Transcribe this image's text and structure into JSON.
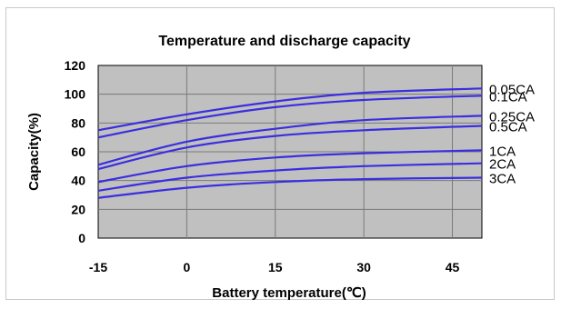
{
  "chart_data": {
    "type": "line",
    "title": "Temperature and discharge capacity",
    "xlabel": "Battery temperature(℃)",
    "ylabel": "Capacity(%)",
    "xlim": [
      -15,
      50
    ],
    "ylim": [
      0,
      120
    ],
    "xticks": [
      "-15",
      "0",
      "15",
      "30",
      "45"
    ],
    "yticks": [
      "0",
      "20",
      "40",
      "60",
      "80",
      "100",
      "120"
    ],
    "grid": true,
    "plot_background": "#c0c0c0",
    "line_color": "#3a2ee0",
    "series": [
      {
        "name": "0.05CA",
        "x": [
          -15,
          0,
          15,
          30,
          50
        ],
        "y": [
          75,
          86,
          95,
          101,
          104
        ]
      },
      {
        "name": "0.1CA",
        "x": [
          -15,
          0,
          15,
          30,
          50
        ],
        "y": [
          70,
          82,
          91,
          96,
          99
        ]
      },
      {
        "name": "0.25CA",
        "x": [
          -15,
          0,
          15,
          30,
          50
        ],
        "y": [
          51,
          67,
          76,
          82,
          85
        ]
      },
      {
        "name": "0.5CA",
        "x": [
          -15,
          0,
          15,
          30,
          50
        ],
        "y": [
          48,
          63,
          71,
          75,
          78
        ]
      },
      {
        "name": "1CA",
        "x": [
          -15,
          0,
          15,
          30,
          50
        ],
        "y": [
          39,
          50,
          56,
          59,
          61
        ]
      },
      {
        "name": "2CA",
        "x": [
          -15,
          0,
          15,
          30,
          50
        ],
        "y": [
          33,
          42,
          47,
          50,
          52
        ]
      },
      {
        "name": "3CA",
        "x": [
          -15,
          0,
          15,
          30,
          50
        ],
        "y": [
          28,
          35,
          39,
          41,
          42
        ]
      }
    ]
  }
}
